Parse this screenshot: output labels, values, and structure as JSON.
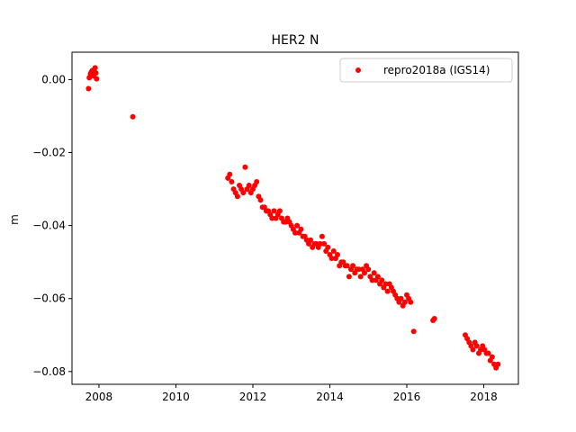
{
  "chart_data": {
    "type": "scatter",
    "title": "HER2 N",
    "xlabel": "",
    "ylabel": "m",
    "xlim": [
      2007.3,
      2018.9
    ],
    "ylim": [
      -0.0835,
      0.0075
    ],
    "xticks": [
      2008,
      2010,
      2012,
      2014,
      2016,
      2018
    ],
    "xtick_labels": [
      "2008",
      "2010",
      "2012",
      "2014",
      "2016",
      "2018"
    ],
    "yticks": [
      0.0,
      -0.02,
      -0.04,
      -0.06,
      -0.08
    ],
    "ytick_labels": [
      "0.00",
      "−0.02",
      "−0.04",
      "−0.06",
      "−0.08"
    ],
    "grid": false,
    "legend_position": "top-right",
    "series": [
      {
        "name": "repro2018a (IGS14)",
        "color": "#ff0000",
        "marker": "circle",
        "x": [
          2007.73,
          2007.75,
          2007.78,
          2007.8,
          2007.83,
          2007.86,
          2007.88,
          2007.9,
          2007.92,
          2007.94,
          2008.88,
          2011.35,
          2011.4,
          2011.45,
          2011.5,
          2011.55,
          2011.6,
          2011.65,
          2011.7,
          2011.75,
          2011.8,
          2011.85,
          2011.9,
          2011.95,
          2012.0,
          2012.05,
          2012.1,
          2012.15,
          2012.2,
          2012.25,
          2012.3,
          2012.35,
          2012.4,
          2012.45,
          2012.5,
          2012.55,
          2012.6,
          2012.65,
          2012.7,
          2012.75,
          2012.8,
          2012.85,
          2012.9,
          2012.95,
          2013.0,
          2013.05,
          2013.1,
          2013.15,
          2013.2,
          2013.25,
          2013.3,
          2013.35,
          2013.4,
          2013.45,
          2013.5,
          2013.55,
          2013.6,
          2013.65,
          2013.7,
          2013.75,
          2013.8,
          2013.85,
          2013.9,
          2013.95,
          2014.0,
          2014.05,
          2014.1,
          2014.15,
          2014.2,
          2014.25,
          2014.3,
          2014.35,
          2014.4,
          2014.45,
          2014.5,
          2014.55,
          2014.6,
          2014.65,
          2014.7,
          2014.75,
          2014.8,
          2014.85,
          2014.9,
          2014.95,
          2015.0,
          2015.05,
          2015.1,
          2015.15,
          2015.2,
          2015.25,
          2015.3,
          2015.35,
          2015.4,
          2015.45,
          2015.5,
          2015.55,
          2015.6,
          2015.65,
          2015.7,
          2015.75,
          2015.8,
          2015.85,
          2015.9,
          2015.95,
          2016.0,
          2016.05,
          2016.1,
          2016.18,
          2016.68,
          2016.72,
          2017.52,
          2017.57,
          2017.62,
          2017.67,
          2017.72,
          2017.77,
          2017.82,
          2017.87,
          2017.92,
          2017.97,
          2018.02,
          2018.07,
          2018.12,
          2018.17,
          2018.22,
          2018.27,
          2018.32,
          2018.37
        ],
        "y": [
          -0.0025,
          0.0005,
          0.0015,
          0.002,
          0.0025,
          0.001,
          0.0022,
          0.0032,
          0.0018,
          0.0002,
          -0.0102,
          -0.027,
          -0.026,
          -0.028,
          -0.03,
          -0.031,
          -0.032,
          -0.029,
          -0.03,
          -0.031,
          -0.024,
          -0.03,
          -0.029,
          -0.031,
          -0.03,
          -0.029,
          -0.028,
          -0.032,
          -0.033,
          -0.035,
          -0.035,
          -0.036,
          -0.036,
          -0.037,
          -0.038,
          -0.036,
          -0.038,
          -0.037,
          -0.036,
          -0.038,
          -0.039,
          -0.039,
          -0.038,
          -0.039,
          -0.04,
          -0.041,
          -0.042,
          -0.04,
          -0.042,
          -0.041,
          -0.043,
          -0.043,
          -0.044,
          -0.045,
          -0.044,
          -0.046,
          -0.045,
          -0.045,
          -0.046,
          -0.045,
          -0.043,
          -0.045,
          -0.047,
          -0.046,
          -0.048,
          -0.049,
          -0.047,
          -0.049,
          -0.048,
          -0.051,
          -0.05,
          -0.05,
          -0.051,
          -0.051,
          -0.054,
          -0.052,
          -0.051,
          -0.053,
          -0.052,
          -0.052,
          -0.054,
          -0.052,
          -0.053,
          -0.051,
          -0.052,
          -0.054,
          -0.055,
          -0.053,
          -0.055,
          -0.054,
          -0.056,
          -0.055,
          -0.057,
          -0.056,
          -0.058,
          -0.056,
          -0.057,
          -0.058,
          -0.059,
          -0.06,
          -0.061,
          -0.06,
          -0.062,
          -0.061,
          -0.059,
          -0.06,
          -0.061,
          -0.069,
          -0.066,
          -0.0655,
          -0.07,
          -0.071,
          -0.072,
          -0.073,
          -0.074,
          -0.072,
          -0.073,
          -0.075,
          -0.074,
          -0.073,
          -0.074,
          -0.075,
          -0.075,
          -0.077,
          -0.076,
          -0.078,
          -0.079,
          -0.078
        ]
      }
    ]
  }
}
